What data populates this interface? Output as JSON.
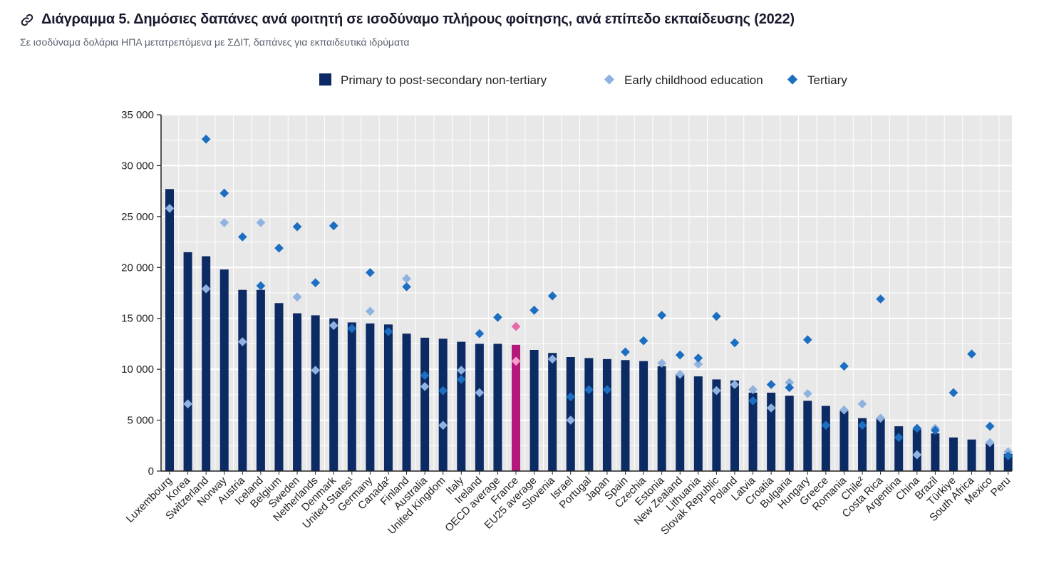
{
  "header": {
    "link_icon": "link-icon",
    "title": "Διάγραμμα 5. Δημόσιες δαπάνες ανά φοιτητή σε ισοδύναμο πλήρους φοίτησης, ανά επίπεδο εκπαίδευσης (2022)",
    "subtitle": "Σε ισοδύναμα δολάρια ΗΠΑ μετατρεπόμενα με ΣΔΙΤ, δαπάνες για εκπαιδευτικά ιδρύματα"
  },
  "colors": {
    "bar": "#0c2a63",
    "bar_highlight": "#b5177a",
    "ece": "#8fb2e0",
    "ece_highlight": "#f2a0c8",
    "tertiary": "#1c6fc0",
    "tertiary_highlight": "#e46aa8",
    "plot_bg": "#e8e8e8",
    "grid": "#ffffff"
  },
  "chart_data": {
    "type": "bar",
    "title": "Διάγραμμα 5. Δημόσιες δαπάνες ανά φοιτητή σε ισοδύναμο πλήρους φοίτησης, ανά επίπεδο εκπαίδευσης (2022)",
    "ylabel": "",
    "xlabel": "",
    "ylim": [
      0,
      35000
    ],
    "yticks": [
      0,
      5000,
      10000,
      15000,
      20000,
      25000,
      30000,
      35000
    ],
    "ytick_labels": [
      "0",
      "5 000",
      "10 000",
      "15 000",
      "20 000",
      "25 000",
      "30 000",
      "35 000"
    ],
    "grid": true,
    "legend_position": "top",
    "highlight": "France",
    "categories": [
      "Luxembourg",
      "Korea",
      "Switzerland",
      "Norway",
      "Austria",
      "Iceland",
      "Belgium",
      "Sweden",
      "Netherlands",
      "Denmark",
      "United States¹",
      "Germany",
      "Canada²",
      "Finland",
      "Australia",
      "United Kingdom",
      "Italy",
      "Ireland",
      "OECD average",
      "France",
      "EU25 average",
      "Slovenia",
      "Israel",
      "Portugal",
      "Japan",
      "Spain",
      "Czechia",
      "Estonia",
      "New Zealand",
      "Lithuania",
      "Slovak Republic",
      "Poland",
      "Latvia",
      "Croatia",
      "Bulgaria",
      "Hungary",
      "Greece",
      "Romania",
      "Chile²",
      "Costa Rica",
      "Argentina",
      "China",
      "Brazil",
      "Türkiye",
      "South Africa",
      "Mexico",
      "Peru"
    ],
    "series": [
      {
        "name": "Primary to post-secondary non-tertiary",
        "kind": "bar",
        "values": [
          27700,
          21500,
          21100,
          19800,
          17800,
          17800,
          16500,
          15500,
          15300,
          15000,
          14600,
          14500,
          14400,
          13500,
          13100,
          13000,
          12700,
          12500,
          12500,
          12400,
          11900,
          11600,
          11200,
          11100,
          11000,
          10900,
          10800,
          10300,
          9500,
          9300,
          9000,
          8900,
          7700,
          7700,
          7400,
          6900,
          6400,
          5900,
          5200,
          5200,
          4400,
          4100,
          3700,
          3300,
          3100,
          2700,
          1700
        ]
      },
      {
        "name": "Early childhood education",
        "kind": "marker",
        "values": [
          25800,
          6600,
          17900,
          24400,
          12700,
          24400,
          null,
          17100,
          9900,
          14300,
          null,
          15700,
          null,
          18900,
          8300,
          4500,
          9900,
          7700,
          null,
          10800,
          null,
          11000,
          5000,
          null,
          null,
          null,
          null,
          10600,
          9500,
          10500,
          7900,
          8500,
          8000,
          6200,
          8700,
          7600,
          null,
          6000,
          6600,
          5200,
          null,
          1600,
          4200,
          null,
          null,
          2800,
          1900
        ]
      },
      {
        "name": "Tertiary",
        "kind": "marker",
        "values": [
          null,
          null,
          32600,
          27300,
          23000,
          18200,
          21900,
          24000,
          18500,
          24100,
          14000,
          19500,
          13700,
          18100,
          9400,
          7900,
          9000,
          13500,
          15100,
          14200,
          15800,
          17200,
          7300,
          8000,
          8000,
          11700,
          12800,
          15300,
          11400,
          11100,
          15200,
          12600,
          6900,
          8500,
          8200,
          12900,
          4500,
          10300,
          4500,
          16900,
          3300,
          4200,
          4000,
          7700,
          11500,
          4400,
          1500
        ]
      }
    ]
  }
}
